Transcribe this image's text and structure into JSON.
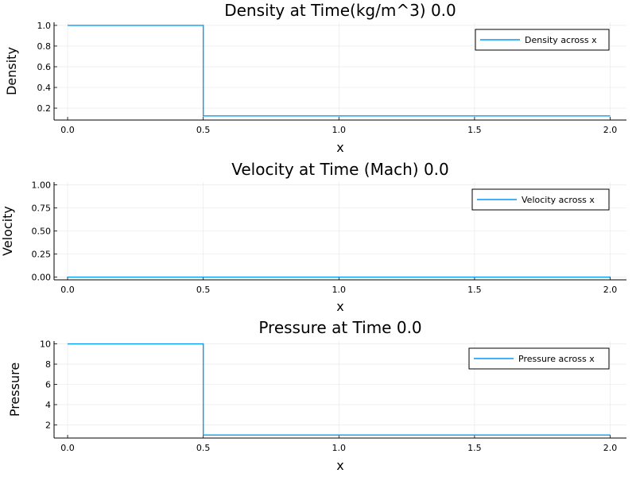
{
  "chart_data": [
    {
      "type": "line",
      "title": "Density at Time(kg/m^3) 0.0",
      "xlabel": "x",
      "ylabel": "Density",
      "xlim": [
        -0.05,
        2.06
      ],
      "ylim": [
        0.085,
        1.03
      ],
      "xticks": [
        0.0,
        0.5,
        1.0,
        1.5,
        2.0
      ],
      "xtick_labels": [
        "0.0",
        "0.5",
        "1.0",
        "1.5",
        "2.0"
      ],
      "yticks": [
        0.2,
        0.4,
        0.6,
        0.8,
        1.0
      ],
      "ytick_labels": [
        "0.2",
        "0.4",
        "0.6",
        "0.8",
        "1.0"
      ],
      "grid": true,
      "legend_position": "top-right",
      "series": [
        {
          "name": "Density across x",
          "color": "#009AFA",
          "x": [
            0.0,
            0.5,
            0.5,
            2.0
          ],
          "y": [
            1.0,
            1.0,
            0.125,
            0.125
          ]
        }
      ]
    },
    {
      "type": "line",
      "title": "Velocity at Time (Mach) 0.0",
      "xlabel": "x",
      "ylabel": "Velocity",
      "xlim": [
        -0.05,
        2.06
      ],
      "ylim": [
        -0.03,
        1.03
      ],
      "xticks": [
        0.0,
        0.5,
        1.0,
        1.5,
        2.0
      ],
      "xtick_labels": [
        "0.0",
        "0.5",
        "1.0",
        "1.5",
        "2.0"
      ],
      "yticks": [
        0.0,
        0.25,
        0.5,
        0.75,
        1.0
      ],
      "ytick_labels": [
        "0.00",
        "0.25",
        "0.50",
        "0.75",
        "1.00"
      ],
      "grid": true,
      "legend_position": "top-right",
      "series": [
        {
          "name": "Velocity across x",
          "color": "#009AFA",
          "x": [
            0.0,
            2.0
          ],
          "y": [
            0.0,
            0.0
          ]
        }
      ]
    },
    {
      "type": "line",
      "title": "Pressure at Time 0.0",
      "xlabel": "x",
      "ylabel": "Pressure",
      "xlim": [
        -0.05,
        2.06
      ],
      "ylim": [
        0.7,
        10.28
      ],
      "xticks": [
        0.0,
        0.5,
        1.0,
        1.5,
        2.0
      ],
      "xtick_labels": [
        "0.0",
        "0.5",
        "1.0",
        "1.5",
        "2.0"
      ],
      "yticks": [
        2,
        4,
        6,
        8,
        10
      ],
      "ytick_labels": [
        "2",
        "4",
        "6",
        "8",
        "10"
      ],
      "grid": true,
      "legend_position": "top-right",
      "series": [
        {
          "name": "Pressure across x",
          "color": "#009AFA",
          "x": [
            0.0,
            0.5,
            0.5,
            2.0
          ],
          "y": [
            10.0,
            10.0,
            1.0,
            1.0
          ]
        }
      ]
    }
  ]
}
